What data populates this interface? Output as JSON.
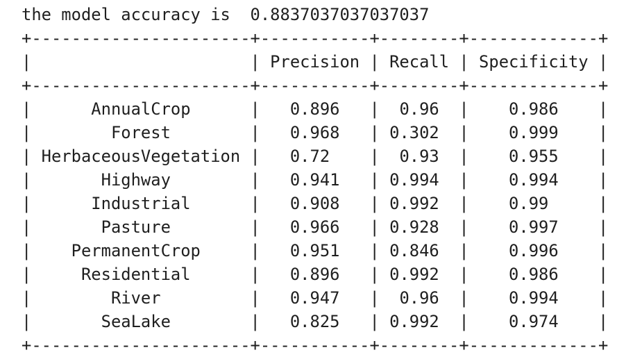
{
  "output": {
    "accuracy_label": "the model accuracy is",
    "accuracy_value": "0.8837037037037037"
  },
  "table": {
    "columns": [
      "",
      "Precision",
      "Recall",
      "Specificity"
    ],
    "col_widths": [
      22,
      11,
      8,
      13
    ],
    "rows": [
      [
        "AnnualCrop",
        "0.896",
        "0.96",
        "0.986"
      ],
      [
        "Forest",
        "0.968",
        "0.302",
        "0.999"
      ],
      [
        "HerbaceousVegetation",
        "0.72",
        "0.93",
        "0.955"
      ],
      [
        "Highway",
        "0.941",
        "0.994",
        "0.994"
      ],
      [
        "Industrial",
        "0.908",
        "0.992",
        "0.99"
      ],
      [
        "Pasture",
        "0.966",
        "0.928",
        "0.997"
      ],
      [
        "PermanentCrop",
        "0.951",
        "0.846",
        "0.996"
      ],
      [
        "Residential",
        "0.896",
        "0.992",
        "0.986"
      ],
      [
        "River",
        "0.947",
        "0.96",
        "0.994"
      ],
      [
        "SeaLake",
        "0.825",
        "0.992",
        "0.974"
      ]
    ]
  }
}
